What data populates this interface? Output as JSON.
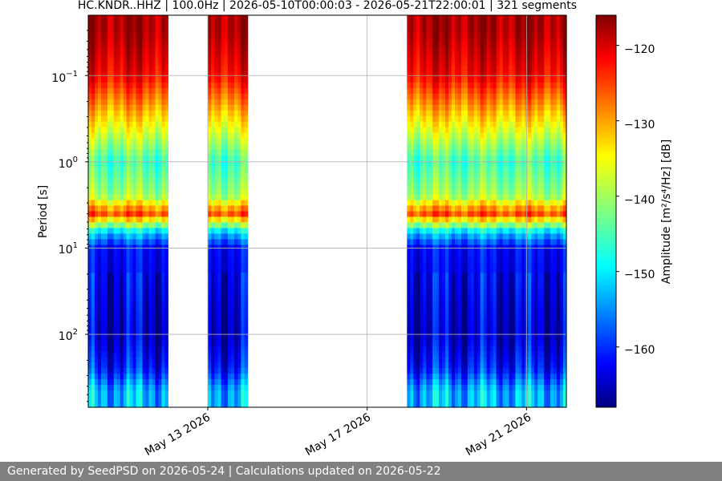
{
  "chart_data": {
    "type": "heatmap",
    "title": "HC.KNDR..HHZ | 100.0Hz | 2026-05-10T00:00:03 - 2026-05-21T22:00:01 | 321 segments",
    "xlabel": "",
    "ylabel": "Period [s]",
    "x_tick_labels": [
      "May 13 2026",
      "May 17 2026",
      "May 21 2026"
    ],
    "x_range": [
      "2026-05-10",
      "2026-05-22"
    ],
    "y_scale": "log-reversed",
    "y_tick_labels": [
      {
        "base": "10",
        "exp": "−1",
        "value": 0.1
      },
      {
        "base": "10",
        "exp": "0",
        "value": 1
      },
      {
        "base": "10",
        "exp": "1",
        "value": 10
      },
      {
        "base": "10",
        "exp": "2",
        "value": 100
      }
    ],
    "y_range": [
      0.02,
      700
    ],
    "grid": true,
    "colormap": "jet",
    "colorbar": {
      "label": "Amplitude [m²/s⁴/Hz] [dB]",
      "ticks": [
        "−120",
        "−130",
        "−140",
        "−150",
        "−160"
      ],
      "range": [
        -168,
        -116
      ]
    },
    "data_segments": [
      {
        "start": "2026-05-10",
        "end": "2026-05-12"
      },
      {
        "start": "2026-05-13",
        "end": "2026-05-14"
      },
      {
        "start": "2026-05-18",
        "end": "2026-05-22"
      }
    ],
    "amplitude_profile": [
      {
        "period": 0.03,
        "db": -118
      },
      {
        "period": 0.1,
        "db": -122
      },
      {
        "period": 0.3,
        "db": -133
      },
      {
        "period": 1.0,
        "db": -145
      },
      {
        "period": 2.5,
        "db": -140
      },
      {
        "period": 4.0,
        "db": -126
      },
      {
        "period": 6.5,
        "db": -150
      },
      {
        "period": 10,
        "db": -161
      },
      {
        "period": 100,
        "db": -164
      },
      {
        "period": 250,
        "db": -160
      },
      {
        "period": 450,
        "db": -152
      }
    ]
  },
  "footer": {
    "text": "Generated by SeedPSD on 2026-05-24 | Calculations updated on 2026-05-22"
  }
}
